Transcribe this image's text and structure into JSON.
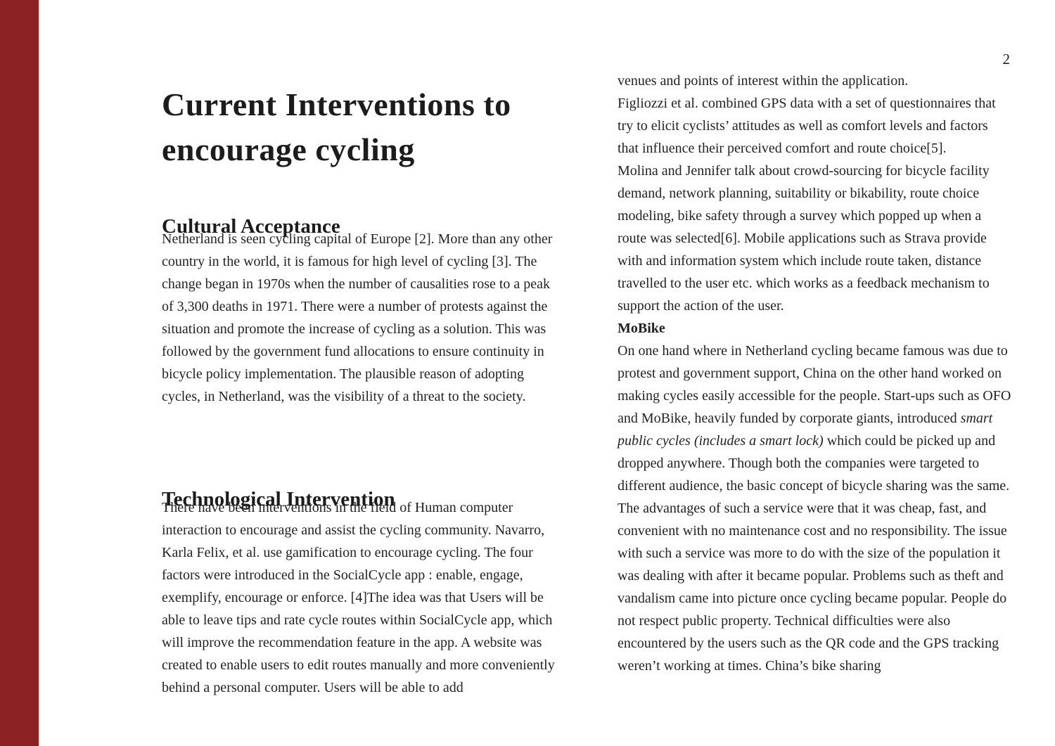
{
  "page": {
    "number": "2",
    "accent_bar_color": "#8b2222",
    "background_color": "#ffffff",
    "text_color": "#222222"
  },
  "left_column": {
    "title": "Current Interventions to encourage cycling",
    "sections": [
      {
        "heading": "Cultural Acceptance",
        "body": "Netherland is seen cycling capital of Europe [2]. More than any other country in the world, it is famous for high level of cycling [3]. The change began in 1970s when the number of causalities rose to a peak of 3,300 deaths in 1971. There were a number of protests against the situation and promote the increase of cycling as a solution. This was followed by the government fund allocations to ensure continuity in bicycle policy implementation. The plausible reason of adopting cycles, in Netherland, was the visibility of a threat to the society."
      },
      {
        "heading": "Technological Intervention",
        "body": "There have been interventions in the field of Human computer interaction to encourage and assist the cycling community. Navarro, Karla Felix, et al. use gamification to encourage cycling. The four factors were introduced in the SocialCycle app : enable, engage, exemplify, encourage or enforce. [4]The idea was that Users will be able to leave tips and rate cycle routes within SocialCycle app, which will improve the recommendation feature in the app. A website was created to enable users to edit routes manually and more conveniently behind a personal computer. Users will be able to add"
      }
    ]
  },
  "right_column": {
    "paragraphs": [
      "venues and points of interest within the application.",
      "Figliozzi et al. combined GPS data with a set of questionnaires that try to elicit cyclists’ attitudes as well as comfort levels and factors that influence their perceived comfort and route choice[5].",
      "Molina and Jennifer talk about crowd-sourcing for bicycle facility demand, network planning, suitability or bikability, route choice modeling, bike safety through a survey which popped up when a route was selected[6]. Mobile applications such as Strava provide with and information system which include route taken, distance travelled to the user etc. which works as a feedback mechanism to support the action of the user."
    ],
    "mobike": {
      "heading": "MoBike",
      "before_italic": "On one hand where in Netherland cycling became famous was due to protest and government support, China on the other hand worked on making cycles easily accessible for the people. Start-ups such as OFO and MoBike, heavily funded by corporate giants, introduced ",
      "italic": "smart public cycles (includes a smart lock)",
      "after_italic": " which could be picked up and dropped anywhere. Though both the companies were targeted to different audience, the basic concept of bicycle sharing was the same. The advantages of such a service were that it was cheap, fast, and convenient with no maintenance cost and no responsibility. The issue with such a service was more to do with the size of the population it was dealing with after it became popular. Problems such as theft and vandalism came into picture once cycling became popular. People do not respect public property. Technical difficulties were also encountered by the users such as the QR code and the GPS tracking weren’t working at times. China’s bike sharing"
    }
  }
}
